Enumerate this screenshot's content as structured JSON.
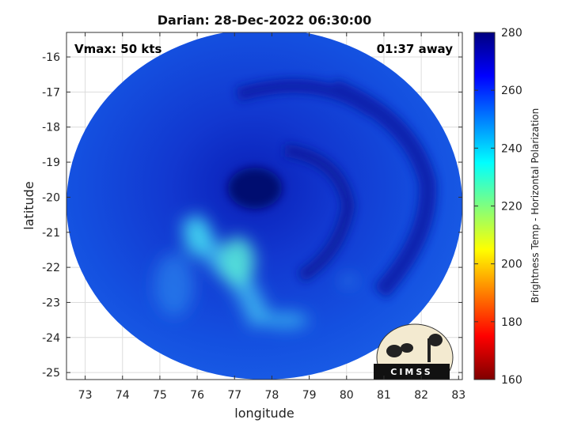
{
  "chart_data": {
    "type": "heatmap",
    "title": "Darian: 28-Dec-2022 06:30:00",
    "xlabel": "longitude",
    "ylabel": "latitude",
    "xlim": [
      72.5,
      83.1
    ],
    "ylim": [
      -25.2,
      -15.3
    ],
    "xticks": [
      73,
      74,
      75,
      76,
      77,
      78,
      79,
      80,
      81,
      82,
      83
    ],
    "yticks": [
      -16,
      -17,
      -18,
      -19,
      -20,
      -21,
      -22,
      -23,
      -24,
      -25
    ],
    "grid": true,
    "annotations": {
      "left": "Vmax: 50 kts",
      "right": "01:37 away"
    },
    "storm_center": {
      "lon": 77.8,
      "lat": -19.8
    },
    "swath": {
      "center_lon": 77.8,
      "center_lat": -20.2,
      "radius_lon": 5.3,
      "radius_lat": 5.0
    },
    "colorbar": {
      "label": "Brightness Temp - Horizontal Polarization",
      "range": [
        160,
        280
      ],
      "ticks": [
        160,
        180,
        200,
        220,
        240,
        260,
        280
      ]
    },
    "colormap": [
      "#7f0000",
      "#ff0000",
      "#ff7f00",
      "#ffff00",
      "#7fff7f",
      "#00ffff",
      "#007fff",
      "#0000ff",
      "#00007f"
    ],
    "logo": "CIMSS"
  }
}
